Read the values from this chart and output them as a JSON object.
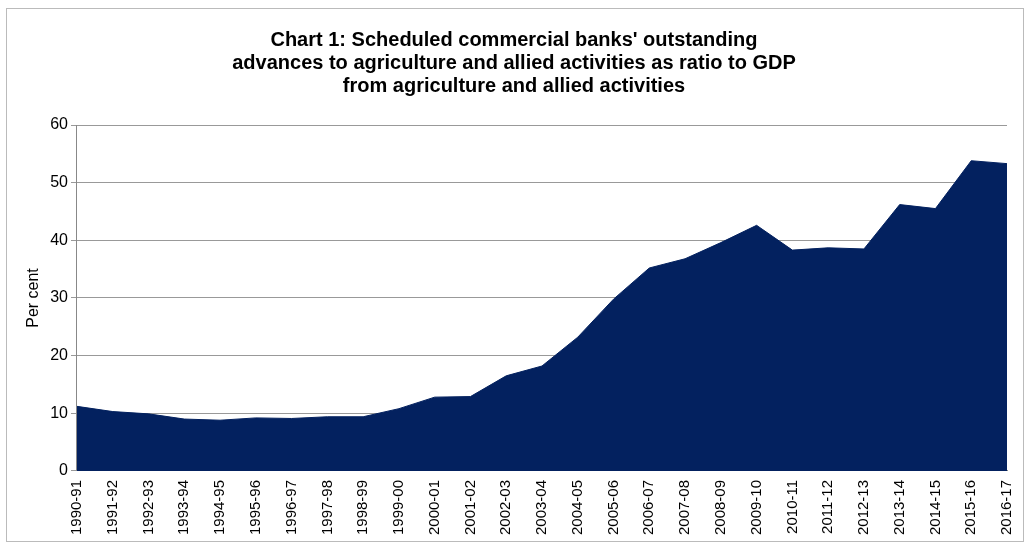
{
  "chart_data": {
    "type": "area",
    "title": "Chart 1: Scheduled commercial banks' outstanding advances to agriculture and allied activities as ratio to GDP from agriculture and allied activities",
    "ylabel": "Per cent",
    "categories": [
      "1990-91",
      "1991-92",
      "1992-93",
      "1993-94",
      "1994-95",
      "1995-96",
      "1996-97",
      "1997-98",
      "1998-99",
      "1999-00",
      "2000-01",
      "2001-02",
      "2002-03",
      "2003-04",
      "2004-05",
      "2005-06",
      "2006-07",
      "2007-08",
      "2008-09",
      "2009-10",
      "2010-11",
      "2011-12",
      "2012-13",
      "2013-14",
      "2014-15",
      "2015-16",
      "2016-17"
    ],
    "series": [
      {
        "color": "#03215f",
        "values": [
          11.2,
          10.3,
          9.9,
          9.0,
          8.8,
          9.2,
          9.1,
          9.4,
          9.4,
          10.8,
          12.8,
          12.9,
          16.5,
          18.2,
          23.2,
          29.8,
          35.2,
          36.8,
          39.6,
          42.6,
          38.3,
          38.7,
          38.5,
          46.2,
          45.5,
          53.8,
          53.3
        ]
      }
    ],
    "ylim": [
      0,
      60
    ],
    "yticks": [
      0,
      10,
      20,
      30,
      40,
      50,
      60
    ],
    "grid": "y",
    "legend": false
  }
}
